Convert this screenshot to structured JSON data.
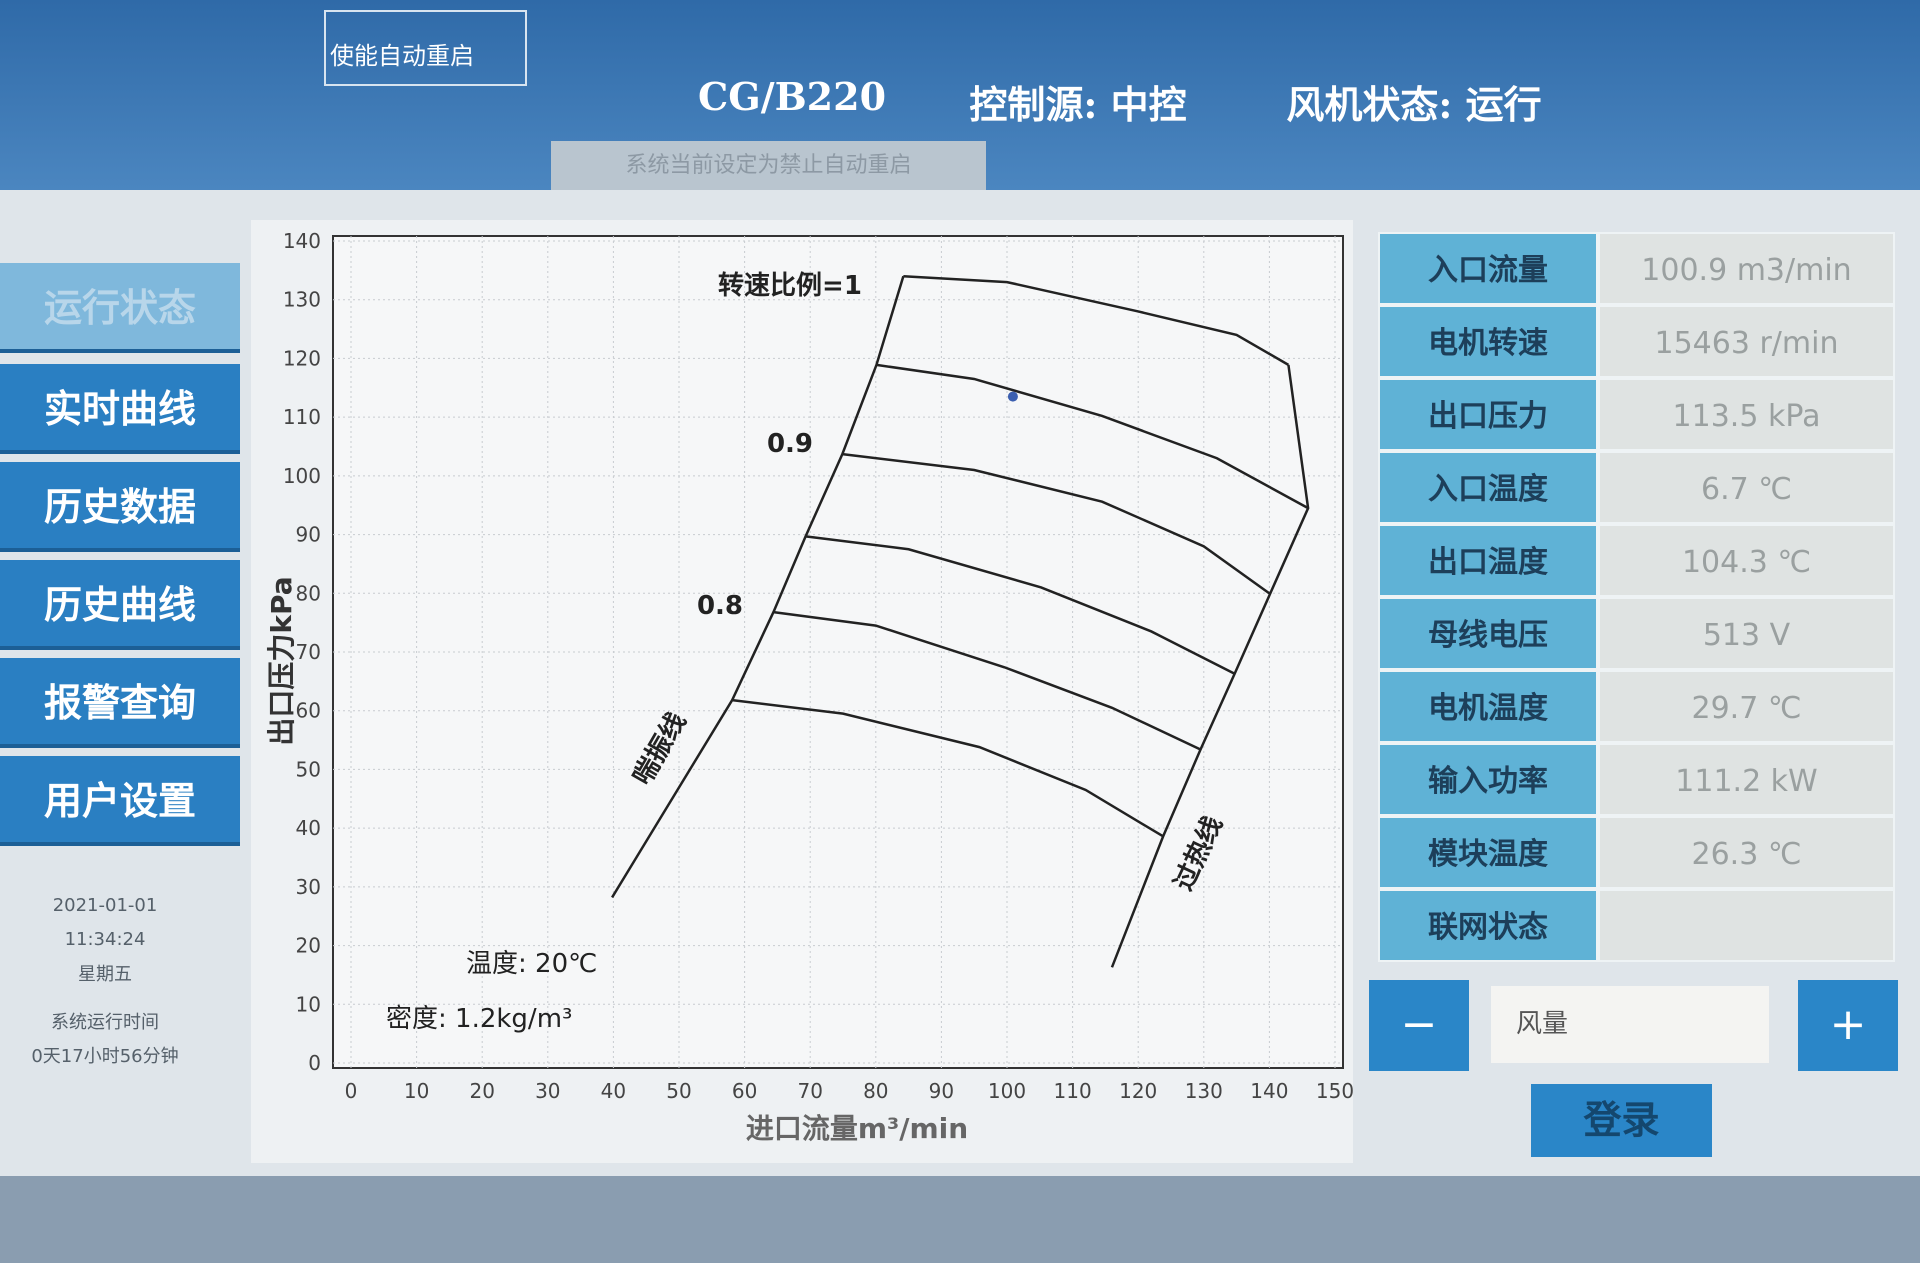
{
  "header": {
    "restart_button": "使能自动重启",
    "model": "CG/B220",
    "control_source": "控制源: 中控",
    "fan_status": "风机状态: 运行",
    "message": "系统当前设定为禁止自动重启"
  },
  "nav": [
    "运行状态",
    "实时曲线",
    "历史数据",
    "历史曲线",
    "报警查询",
    "用户设置"
  ],
  "info": [
    "2021-01-01",
    "11:34:24",
    "星期五",
    "系统运行时间",
    "0天17小时56分钟"
  ],
  "chart_data": {
    "type": "line",
    "x_label": "进口流量m³/min",
    "y_label": "出口压力kPa",
    "xlim": [
      0,
      150
    ],
    "xticks": [
      0,
      10,
      20,
      30,
      40,
      50,
      60,
      70,
      80,
      90,
      100,
      110,
      120,
      130,
      140,
      150
    ],
    "ylim": [
      0,
      140
    ],
    "yticks": [
      0,
      10,
      20,
      30,
      40,
      50,
      60,
      70,
      80,
      90,
      100,
      110,
      120,
      130,
      140
    ],
    "grid": true,
    "series": [
      {
        "color": "#222222",
        "x": [
          84.2,
          100,
          120,
          135,
          142.9
        ],
        "y": [
          134,
          133,
          128,
          124,
          118.9
        ]
      },
      {
        "color": "#222222",
        "x": [
          80.1,
          95,
          114.5,
          132,
          145.9
        ],
        "y": [
          118.9,
          116.5,
          110.2,
          103,
          94.5
        ]
      },
      {
        "color": "#222222",
        "x": [
          74.9,
          95,
          114.5,
          130,
          140.1
        ],
        "y": [
          103.7,
          101,
          95.6,
          88,
          79.9
        ]
      },
      {
        "color": "#222222",
        "x": [
          69.3,
          85,
          105.2,
          122,
          134.7
        ],
        "y": [
          89.7,
          87.5,
          81,
          73.5,
          66.3
        ]
      },
      {
        "color": "#222222",
        "x": [
          64.4,
          80,
          99.6,
          116,
          129.5
        ],
        "y": [
          76.8,
          74.5,
          67.4,
          60.5,
          53.4
        ]
      },
      {
        "color": "#222222",
        "x": [
          58.1,
          75,
          95.8,
          112,
          123.8
        ],
        "y": [
          61.8,
          59.5,
          53.8,
          46.5,
          38.6
        ]
      },
      {
        "color": "#222222",
        "x": [
          39.8,
          58.1,
          64.4,
          69.3,
          74.9,
          80.1,
          84.2
        ],
        "y": [
          28.2,
          61.8,
          76.8,
          89.7,
          103.7,
          118.9,
          134
        ]
      },
      {
        "color": "#222222",
        "x": [
          116,
          123.8,
          129.5,
          134.7,
          140.1,
          145.9,
          142.9
        ],
        "y": [
          16.3,
          38.6,
          53.4,
          66.3,
          79.9,
          94.5,
          118.9
        ]
      }
    ],
    "operating_point": {
      "x": 100.9,
      "y": 113.5,
      "color": "#3b5fb0"
    },
    "annotations": [
      "转速比例=1",
      "0.9",
      "0.8",
      "喘振线",
      "过热线",
      "温度: 20℃",
      "密度: 1.2kg/m³"
    ]
  },
  "table": {
    "rows": [
      [
        "入口流量",
        "100.9 m3/min"
      ],
      [
        "电机转速",
        "15463 r/min"
      ],
      [
        "出口压力",
        "113.5 kPa"
      ],
      [
        "入口温度",
        "6.7 ℃"
      ],
      [
        "出口温度",
        "104.3 ℃"
      ],
      [
        "母线电压",
        "513 V"
      ],
      [
        "电机温度",
        "29.7 ℃"
      ],
      [
        "输入功率",
        "111.2 kW"
      ],
      [
        "模块温度",
        "26.3 ℃"
      ],
      [
        "联网状态"
      ]
    ]
  },
  "controls": {
    "minus": "−",
    "field_label": "风量",
    "plus": "+",
    "login": "登录"
  }
}
